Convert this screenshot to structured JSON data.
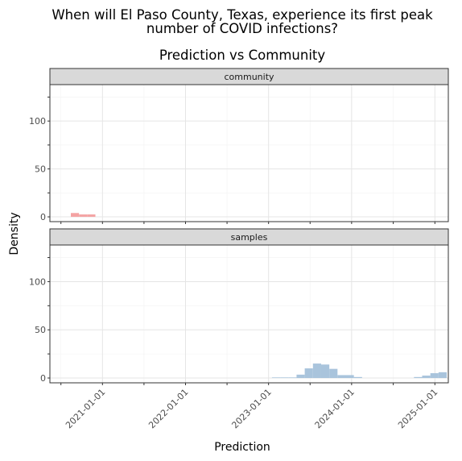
{
  "chart_data": {
    "type": "histogram",
    "title_lines": [
      "When will El Paso County, Texas, experience its first peak",
      "number of COVID infections?"
    ],
    "subtitle": "Prediction vs Community",
    "xlabel": "Prediction",
    "ylabel": "Density",
    "ylim": [
      -5,
      138
    ],
    "yticks": [
      0,
      50,
      100
    ],
    "xlim": [
      "2020-05-15",
      "2025-03-01"
    ],
    "xticks": [
      "2021-01-01",
      "2022-01-01",
      "2023-01-01",
      "2024-01-01",
      "2025-01-01"
    ],
    "bin_width_days": 36,
    "grid": true,
    "panels": [
      {
        "label": "community",
        "color": "#f4a3a3",
        "bins": [
          {
            "start": "2020-08-15",
            "value": 4
          },
          {
            "start": "2020-09-20",
            "value": 2.5
          },
          {
            "start": "2020-10-26",
            "value": 2.5
          }
        ]
      },
      {
        "label": "samples",
        "color": "#a9c4dc",
        "bins": [
          {
            "start": "2023-01-16",
            "value": 0.6
          },
          {
            "start": "2023-02-21",
            "value": 0.6
          },
          {
            "start": "2023-03-29",
            "value": 0.6
          },
          {
            "start": "2023-05-04",
            "value": 3.5
          },
          {
            "start": "2023-06-09",
            "value": 10
          },
          {
            "start": "2023-07-15",
            "value": 15
          },
          {
            "start": "2023-08-20",
            "value": 14
          },
          {
            "start": "2023-09-25",
            "value": 9.5
          },
          {
            "start": "2023-10-31",
            "value": 3
          },
          {
            "start": "2023-12-06",
            "value": 3
          },
          {
            "start": "2024-01-11",
            "value": 1
          },
          {
            "start": "2024-10-01",
            "value": 1
          },
          {
            "start": "2024-11-06",
            "value": 2.5
          },
          {
            "start": "2024-12-12",
            "value": 5
          },
          {
            "start": "2025-01-17",
            "value": 6
          }
        ]
      }
    ]
  }
}
